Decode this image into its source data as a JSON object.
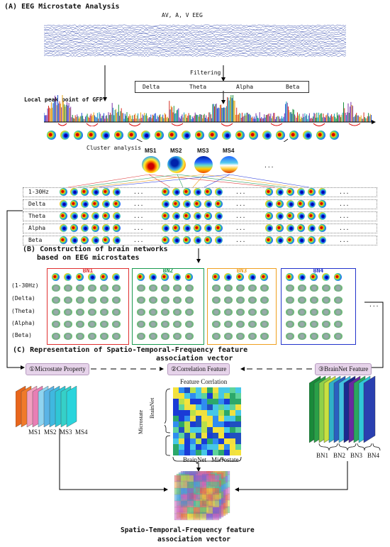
{
  "section_a": {
    "title": "(A) EEG Microstate Analysis",
    "eeg_label": "AV, A, V EEG",
    "filtering_label": "Filtering",
    "bands_box": [
      "Delta",
      "Theta",
      "Alpha",
      "Beta"
    ],
    "gfp_label": "Local peak point of GFP",
    "cluster_label": "Cluster analysis",
    "microstates": [
      "MS1",
      "MS2",
      "MS3",
      "MS4"
    ],
    "ellipsis": "...",
    "rows": [
      "1-30Hz",
      "Delta",
      "Theta",
      "Alpha",
      "Beta"
    ]
  },
  "section_b": {
    "title_line1": "(B) Construction of brain networks",
    "title_line2": "based on EEG microstates",
    "networks": [
      {
        "label": "BN1",
        "color": "#e03030"
      },
      {
        "label": "BN2",
        "color": "#1a9a50"
      },
      {
        "label": "BN3",
        "color": "#f0a020"
      },
      {
        "label": "BN4",
        "color": "#2233cc"
      }
    ],
    "rows": [
      "(1-30Hz)",
      "(Delta)",
      "(Theta)",
      "(Alpha)",
      "(Beta)"
    ],
    "ellipsis": "..."
  },
  "section_c": {
    "title_line1": "(C) Representation of Spatio-Temporal-Frequency feature",
    "title_line2": "association vector",
    "box1": "①Microstate Property",
    "box2": "②Correlation Feature",
    "box3": "③BrainNet Feature",
    "ms_labels": [
      "MS1",
      "MS2",
      "MS3",
      "MS4"
    ],
    "matrix_title": "Feature Corrlation",
    "axis_brainnet": "BrainNet",
    "axis_microstate": "Microstate",
    "vaxis_microstate": "Microstate",
    "vaxis_brainnet": "BrainNet",
    "bn_labels": [
      "BN1",
      "BN2",
      "BN3",
      "BN4"
    ],
    "final_line1": "Spatio-Temporal-Frequency feature",
    "final_line2": "association vector"
  }
}
